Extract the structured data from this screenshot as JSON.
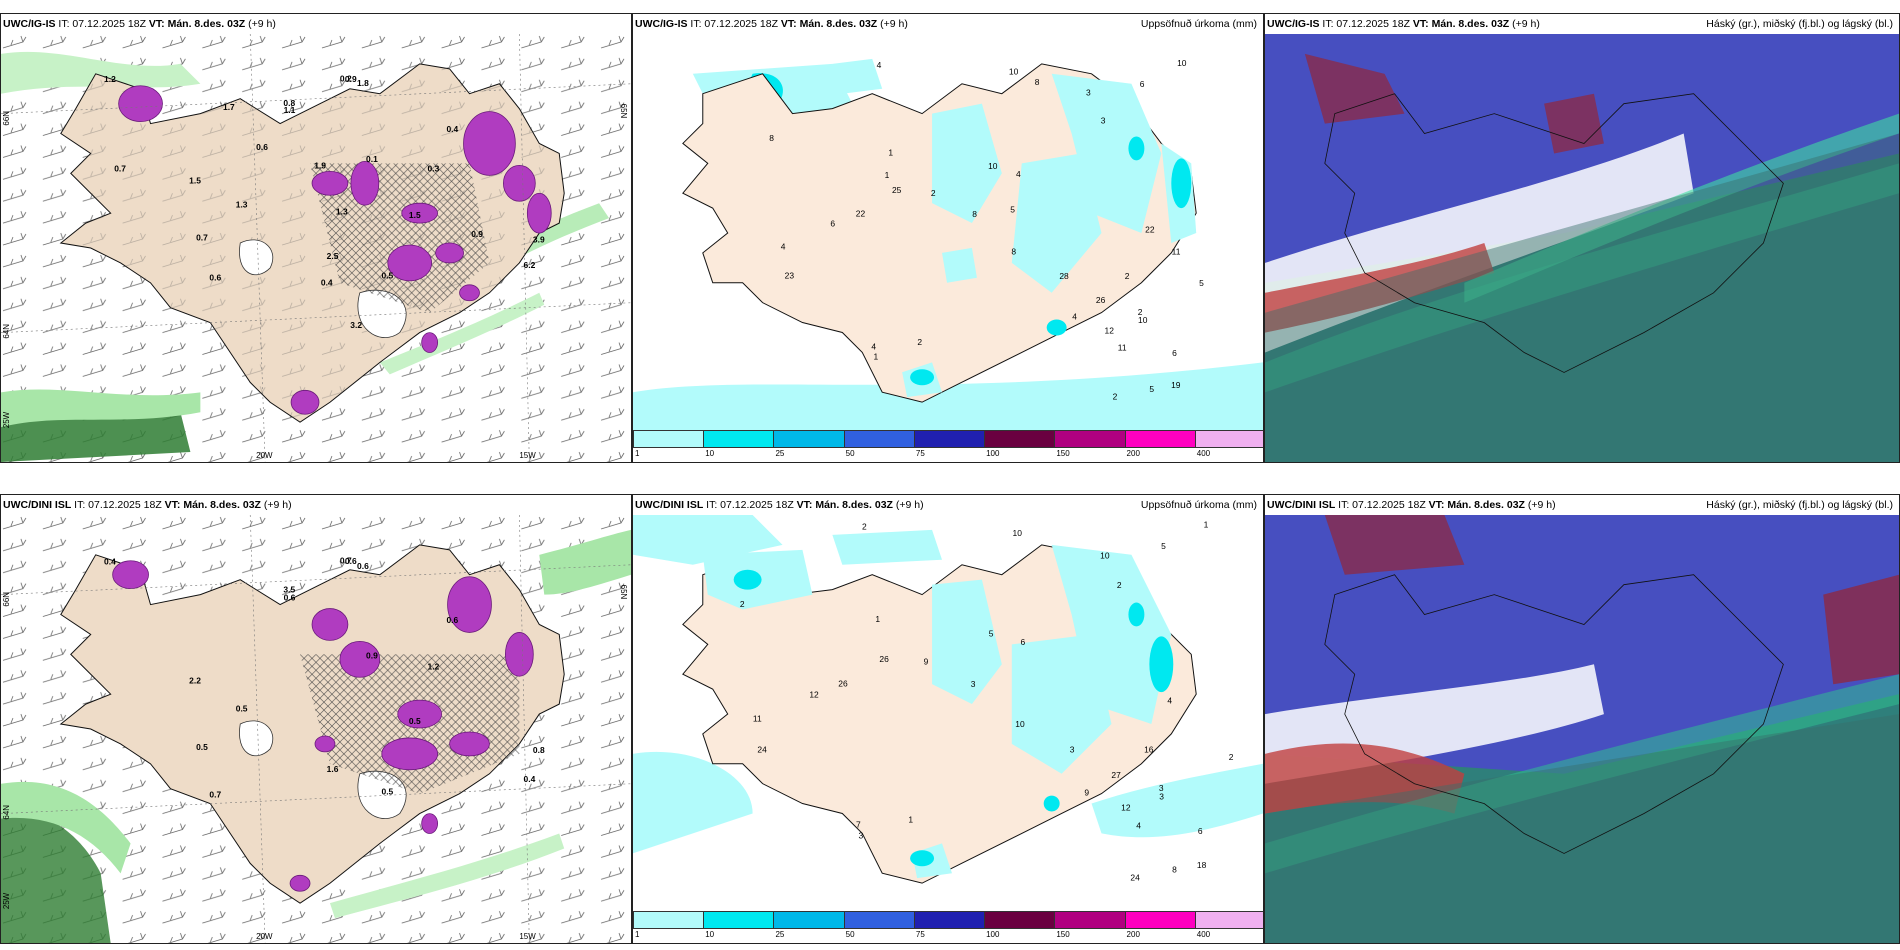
{
  "rows": [
    {
      "model": "UWC/IG-IS",
      "it_text": "IT: 07.12.2025 18Z",
      "vt_text": "VT: Mán. 8.des. 03Z",
      "lead_text": "(+9 h)",
      "wind_labels": [
        "0.5",
        "0.9",
        "0.6",
        "1.5",
        "3.9",
        "2.5",
        "1.8",
        "0.7",
        "0.8",
        "1.2",
        "0.3",
        "1.3",
        "6.2",
        "0.4",
        "0.2",
        "0.1",
        "1.5",
        "1.1",
        "0.6",
        "0.9",
        "1.7",
        "3.2",
        "0.4",
        "1.9",
        "1.3",
        "0.7"
      ],
      "precip_labels": [
        "1",
        "2",
        "2",
        "2",
        "3",
        "28",
        "22",
        "5",
        "1",
        "12",
        "10",
        "8",
        "6",
        "4",
        "4",
        "10",
        "19",
        "22",
        "23",
        "26",
        "25",
        "10",
        "4",
        "5",
        "6",
        "3",
        "4",
        "2",
        "8",
        "8",
        "6",
        "2",
        "4",
        "11",
        "10",
        "11",
        "8",
        "1",
        "5"
      ],
      "cloud_colors": [
        "#2f7f7b",
        "#4a4ac8",
        "#8a2a4a",
        "#2fbf8f"
      ]
    },
    {
      "model": "UWC/DINI ISL",
      "it_text": "IT: 07.12.2025 18Z",
      "vt_text": "VT: Mán. 8.des. 03Z",
      "lead_text": "(+9 h)",
      "wind_labels": [
        "0.5",
        "0.6",
        "0.7",
        "2.2",
        "0.8",
        "1.6",
        "0.6",
        "0.5",
        "3.5",
        "0.4",
        "1.2",
        "0.5",
        "0.4",
        "0.6",
        "0.7",
        "0.9",
        "0.5",
        "0.6"
      ],
      "precip_labels": [
        "3",
        "3",
        "24",
        "16",
        "10",
        "3",
        "4",
        "2",
        "1",
        "12",
        "3",
        "2",
        "6",
        "9",
        "7",
        "10",
        "18",
        "26",
        "24",
        "27",
        "26",
        "1",
        "6",
        "8",
        "12",
        "2",
        "11",
        "9",
        "10",
        "3",
        "5",
        "1",
        "2",
        "4",
        "5"
      ],
      "cloud_colors": [
        "#2f7f7b",
        "#4a4ac8",
        "#8a2a4a",
        "#2fbf8f"
      ]
    }
  ],
  "precip_title": "Uppsöfnuð úrkoma (mm)",
  "cloud_title": "Háský (gr.), miðský (fj.bl.) og lágský (bl.)",
  "colorbar": {
    "ticks": [
      "1",
      "10",
      "25",
      "50",
      "75",
      "100",
      "150",
      "200",
      "400"
    ],
    "colors": [
      "#b2fbfb",
      "#00e8f0",
      "#00b8e8",
      "#3060e0",
      "#2020b0",
      "#6a0040",
      "#b00080",
      "#ff00c0",
      "#f0b0f0"
    ]
  },
  "axis_labels": {
    "lon_20w": "20W",
    "lon_15w": "15W",
    "lat_66n": "66N",
    "lat_64n": "64N",
    "lat_65n": "65N",
    "lon_25w": "25W"
  }
}
